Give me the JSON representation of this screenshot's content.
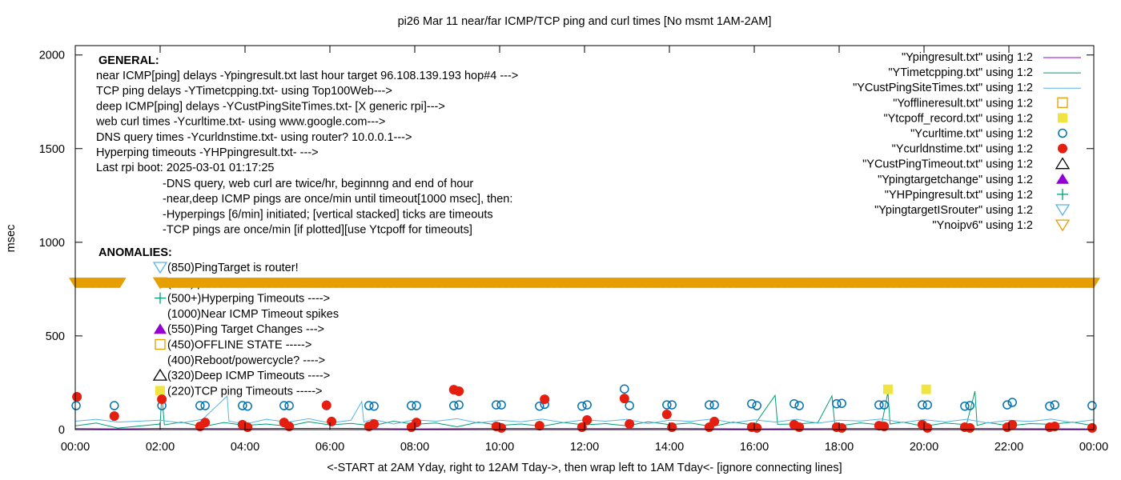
{
  "chart_data": {
    "type": "scatter",
    "title": "pi26 Mar 11  near/far ICMP/TCP ping and curl times [No msmt 1AM-2AM]",
    "xlabel": "<-START at 2AM Yday, right to 12AM Tday->, then wrap left to 1AM Tday<- [ignore connecting lines]",
    "ylabel": "msec",
    "xlim": [
      0,
      24
    ],
    "ylim": [
      0,
      2050
    ],
    "x_ticks": [
      "00:00",
      "02:00",
      "04:00",
      "06:00",
      "08:00",
      "10:00",
      "12:00",
      "14:00",
      "16:00",
      "18:00",
      "20:00",
      "22:00",
      "00:00"
    ],
    "y_ticks": [
      0,
      500,
      1000,
      1500,
      2000
    ],
    "grid": false,
    "legend_placement": "top-right",
    "general_heading": "GENERAL:",
    "general_lines": [
      "near ICMP[ping] delays -Ypingresult.txt last hour target 96.108.139.193 hop#4 --->",
      "TCP ping delays -YTimetcpping.txt- using Top100Web--->",
      "deep ICMP[ping] delays -YCustPingSiteTimes.txt- [X generic rpi]--->",
      "web curl times -Ycurltime.txt- using www.google.com--->",
      "DNS query times -Ycurldnstime.txt- using router? 10.0.0.1--->",
      "Hyperping timeouts -YHPpingresult.txt- --->",
      "Last rpi boot: 2025-03-01 01:17:25"
    ],
    "notes": [
      "-DNS query, web curl are twice/hr, beginnng and end of hour",
      "-near,deep ICMP pings are once/min until timeout[1000 msec], then:",
      "  -Hyperpings [6/min] initiated; [vertical stacked] ticks are timeouts",
      "-TCP pings are once/min [if plotted][use Ytcpoff for timeouts]"
    ],
    "anomalies_heading": "ANOMALIES:",
    "anomalies": [
      {
        "label": "(850)PingTarget is router!",
        "symbol": "triangle-down-open",
        "color": "#56b4e9"
      },
      {
        "label": "(785)ipv6 failed",
        "symbol": "triangle-down-open",
        "color": "#e69f00"
      },
      {
        "label": "(500+)Hyperping Timeouts ---->",
        "symbol": "plus",
        "color": "#009e73"
      },
      {
        "label": "(1000)Near ICMP Timeout spikes",
        "symbol": "none",
        "color": "#9400d3"
      },
      {
        "label": "(550)Ping Target Changes --->",
        "symbol": "triangle-up-filled",
        "color": "#9400d3"
      },
      {
        "label": "(450)OFFLINE STATE ----->",
        "symbol": "square-open",
        "color": "#e69f00"
      },
      {
        "label": "(400)Reboot/powercycle? ---->",
        "symbol": "none",
        "color": "#000000"
      },
      {
        "label": "(320)Deep ICMP Timeouts ---->",
        "symbol": "triangle-up-open",
        "color": "#000000"
      },
      {
        "label": "(220)TCP ping Timeouts ----->",
        "symbol": "square-filled",
        "color": "#f0e442"
      }
    ],
    "series": [
      {
        "name": "\"Ypingresult.txt\" using 1:2",
        "style": "line",
        "color": "#9400d3",
        "points": [
          [
            0,
            5
          ],
          [
            1,
            4
          ],
          [
            2,
            6
          ],
          [
            4,
            5
          ],
          [
            6,
            7
          ],
          [
            8,
            4
          ],
          [
            10,
            6
          ],
          [
            12,
            5
          ],
          [
            14,
            6
          ],
          [
            16,
            4
          ],
          [
            18,
            5
          ],
          [
            20,
            6
          ],
          [
            22,
            5
          ],
          [
            24,
            4
          ]
        ]
      },
      {
        "name": "\"YTimetcpping.txt\" using 1:2",
        "style": "line",
        "color": "#009e73",
        "points": [
          [
            0,
            20
          ],
          [
            0.5,
            35
          ],
          [
            1,
            8
          ],
          [
            2,
            30
          ],
          [
            2.04,
            188
          ],
          [
            2.1,
            25
          ],
          [
            2.5,
            40
          ],
          [
            3,
            15
          ],
          [
            3.5,
            38
          ],
          [
            4,
            22
          ],
          [
            4.5,
            30
          ],
          [
            5,
            18
          ],
          [
            5.5,
            42
          ],
          [
            6,
            25
          ],
          [
            6.5,
            33
          ],
          [
            7,
            20
          ],
          [
            7.5,
            45
          ],
          [
            8,
            28
          ],
          [
            8.5,
            35
          ],
          [
            9,
            15
          ],
          [
            9.5,
            40
          ],
          [
            10,
            22
          ],
          [
            10.5,
            30
          ],
          [
            11,
            18
          ],
          [
            11.5,
            38
          ],
          [
            12,
            25
          ],
          [
            12.5,
            32
          ],
          [
            13,
            20
          ],
          [
            13.5,
            42
          ],
          [
            14,
            27
          ],
          [
            14.5,
            35
          ],
          [
            15,
            16
          ],
          [
            15.5,
            40
          ],
          [
            16,
            24
          ],
          [
            16.49,
            183
          ],
          [
            16.55,
            28
          ],
          [
            17,
            30
          ],
          [
            17.5,
            38
          ],
          [
            17.83,
            180
          ],
          [
            17.9,
            22
          ],
          [
            18,
            20
          ],
          [
            18.5,
            36
          ],
          [
            19,
            25
          ],
          [
            19.15,
            200
          ],
          [
            19.2,
            30
          ],
          [
            19.5,
            40
          ],
          [
            20,
            18
          ],
          [
            20.5,
            35
          ],
          [
            21,
            26
          ],
          [
            21.2,
            205
          ],
          [
            21.25,
            22
          ],
          [
            21.5,
            38
          ],
          [
            22,
            20
          ],
          [
            22.5,
            32
          ],
          [
            23,
            28
          ],
          [
            23.5,
            40
          ],
          [
            24,
            20
          ]
        ]
      },
      {
        "name": "\"YCustPingSiteTimes.txt\" using 1:2",
        "style": "line",
        "color": "#56b4e9",
        "points": [
          [
            0,
            45
          ],
          [
            0.5,
            55
          ],
          [
            1,
            40
          ],
          [
            2,
            50
          ],
          [
            2.5,
            35
          ],
          [
            3,
            55
          ],
          [
            3.58,
            179
          ],
          [
            3.62,
            45
          ],
          [
            4,
            30
          ],
          [
            4.5,
            55
          ],
          [
            5,
            40
          ],
          [
            5.5,
            58
          ],
          [
            6,
            35
          ],
          [
            6.5,
            50
          ],
          [
            6.75,
            150
          ],
          [
            6.8,
            40
          ],
          [
            7,
            55
          ],
          [
            7.5,
            30
          ],
          [
            8,
            52
          ],
          [
            8.5,
            45
          ],
          [
            9,
            58
          ],
          [
            9.5,
            35
          ],
          [
            10,
            50
          ],
          [
            10.5,
            42
          ],
          [
            11,
            56
          ],
          [
            11.5,
            38
          ],
          [
            12,
            52
          ],
          [
            12.5,
            45
          ],
          [
            13,
            55
          ],
          [
            13.5,
            32
          ],
          [
            14,
            50
          ],
          [
            14.5,
            44
          ],
          [
            15,
            57
          ],
          [
            15.5,
            36
          ],
          [
            16,
            52
          ],
          [
            16.5,
            40
          ],
          [
            17,
            55
          ],
          [
            17.5,
            34
          ],
          [
            18,
            50
          ],
          [
            18.5,
            46
          ],
          [
            19,
            57
          ],
          [
            19.5,
            38
          ],
          [
            20,
            53
          ],
          [
            20.5,
            41
          ],
          [
            21,
            55
          ],
          [
            21.5,
            35
          ],
          [
            22,
            50
          ],
          [
            22.5,
            44
          ],
          [
            23,
            56
          ],
          [
            23.5,
            38
          ],
          [
            24,
            52
          ]
        ]
      },
      {
        "name": "\"Yofflineresult.txt\" using 1:2",
        "style": "square-open",
        "color": "#e69f00",
        "points": []
      },
      {
        "name": "\"Ytcpoff_record.txt\" using 1:2",
        "style": "square-filled",
        "color": "#f0e442",
        "points": [
          [
            19.15,
            215
          ],
          [
            20.05,
            215
          ]
        ]
      },
      {
        "name": "\"Ycurltime.txt\" using 1:2",
        "style": "circle-open",
        "color": "#0072b2",
        "points": [
          [
            0.02,
            128
          ],
          [
            0.92,
            128
          ],
          [
            2.04,
            128
          ],
          [
            2.94,
            128
          ],
          [
            3.06,
            128
          ],
          [
            3.94,
            128
          ],
          [
            4.06,
            125
          ],
          [
            4.92,
            128
          ],
          [
            5.04,
            128
          ],
          [
            5.92,
            128
          ],
          [
            6.92,
            128
          ],
          [
            7.04,
            125
          ],
          [
            7.92,
            128
          ],
          [
            8.04,
            128
          ],
          [
            8.92,
            128
          ],
          [
            9.04,
            132
          ],
          [
            9.92,
            132
          ],
          [
            10.04,
            132
          ],
          [
            10.94,
            125
          ],
          [
            11.06,
            135
          ],
          [
            11.94,
            125
          ],
          [
            12.06,
            132
          ],
          [
            12.94,
            217
          ],
          [
            13.06,
            128
          ],
          [
            13.94,
            132
          ],
          [
            14.06,
            132
          ],
          [
            14.94,
            132
          ],
          [
            15.06,
            132
          ],
          [
            15.94,
            138
          ],
          [
            16.06,
            128
          ],
          [
            16.94,
            138
          ],
          [
            17.06,
            128
          ],
          [
            17.94,
            138
          ],
          [
            18.06,
            140
          ],
          [
            18.94,
            132
          ],
          [
            19.06,
            132
          ],
          [
            19.96,
            132
          ],
          [
            20.08,
            132
          ],
          [
            20.96,
            125
          ],
          [
            21.08,
            128
          ],
          [
            21.96,
            132
          ],
          [
            22.08,
            145
          ],
          [
            22.96,
            125
          ],
          [
            23.08,
            132
          ],
          [
            23.96,
            128
          ]
        ]
      },
      {
        "name": "\"Ycurldnstime.txt\" using 1:2",
        "style": "circle-filled",
        "color": "#e51e10",
        "points": [
          [
            0.04,
            175
          ],
          [
            0.92,
            72
          ],
          [
            2.04,
            162
          ],
          [
            2.94,
            17
          ],
          [
            3.06,
            38
          ],
          [
            3.94,
            26
          ],
          [
            4.06,
            13
          ],
          [
            4.92,
            38
          ],
          [
            5.04,
            17
          ],
          [
            5.92,
            130
          ],
          [
            6.04,
            43
          ],
          [
            6.92,
            17
          ],
          [
            7.04,
            30
          ],
          [
            7.92,
            13
          ],
          [
            8.04,
            38
          ],
          [
            8.92,
            213
          ],
          [
            9.04,
            205
          ],
          [
            9.92,
            17
          ],
          [
            10.04,
            9
          ],
          [
            10.94,
            21
          ],
          [
            11.06,
            162
          ],
          [
            11.94,
            13
          ],
          [
            12.06,
            51
          ],
          [
            12.94,
            166
          ],
          [
            13.06,
            30
          ],
          [
            13.94,
            81
          ],
          [
            14.06,
            13
          ],
          [
            14.94,
            13
          ],
          [
            15.06,
            43
          ],
          [
            15.94,
            13
          ],
          [
            16.06,
            9
          ],
          [
            16.94,
            26
          ],
          [
            17.06,
            13
          ],
          [
            17.94,
            13
          ],
          [
            18.06,
            9
          ],
          [
            18.94,
            21
          ],
          [
            19.06,
            17
          ],
          [
            19.96,
            26
          ],
          [
            20.08,
            9
          ],
          [
            20.96,
            13
          ],
          [
            21.08,
            9
          ],
          [
            21.96,
            13
          ],
          [
            22.08,
            26
          ],
          [
            22.96,
            13
          ],
          [
            23.08,
            17
          ],
          [
            23.96,
            9
          ]
        ]
      },
      {
        "name": "\"YCustPingTimeout.txt\" using 1:2",
        "style": "triangle-up-open",
        "color": "#000000",
        "points": []
      },
      {
        "name": "\"Ypingtargetchange\" using 1:2",
        "style": "triangle-up-filled",
        "color": "#9400d3",
        "points": []
      },
      {
        "name": "\"YHPpingresult.txt\" using 1:2",
        "style": "plus",
        "color": "#009e73",
        "points": []
      },
      {
        "name": "\"YpingtargetISrouter\" using 1:2",
        "style": "triangle-down-open",
        "color": "#56b4e9",
        "points": []
      },
      {
        "name": "\"Ynoipv6\" using 1:2",
        "style": "triangle-down-open",
        "color": "#e69f00",
        "value": 785,
        "per_minute_ranges": [
          [
            0,
            1.05
          ],
          [
            2.0,
            24
          ]
        ]
      }
    ]
  }
}
